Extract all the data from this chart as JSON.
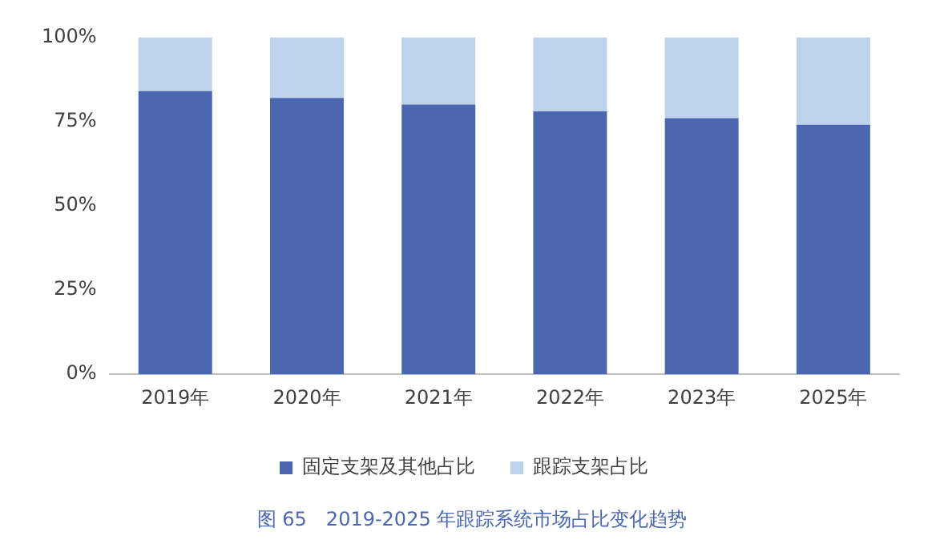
{
  "chart_data": {
    "type": "bar",
    "stacked": true,
    "categories": [
      "2019年",
      "2020年",
      "2021年",
      "2022年",
      "2023年",
      "2025年"
    ],
    "series": [
      {
        "name": "固定支架及其他占比",
        "color": "#4a67b0",
        "values": [
          84,
          82,
          80,
          78,
          76,
          74
        ]
      },
      {
        "name": "跟踪支架占比",
        "color": "#bdd3ec",
        "values": [
          16,
          18,
          20,
          22,
          24,
          26
        ]
      }
    ],
    "ylim": [
      0,
      100
    ],
    "yticks": [
      {
        "value": 0,
        "label": "0%"
      },
      {
        "value": 25,
        "label": "25%"
      },
      {
        "value": 50,
        "label": "50%"
      },
      {
        "value": 75,
        "label": "75%"
      },
      {
        "value": 100,
        "label": "100%"
      }
    ],
    "grid": false,
    "legend": "bottom",
    "annotations": [
      "图 65　2019-2025 年跟踪系统市场占比变化趋势"
    ]
  }
}
